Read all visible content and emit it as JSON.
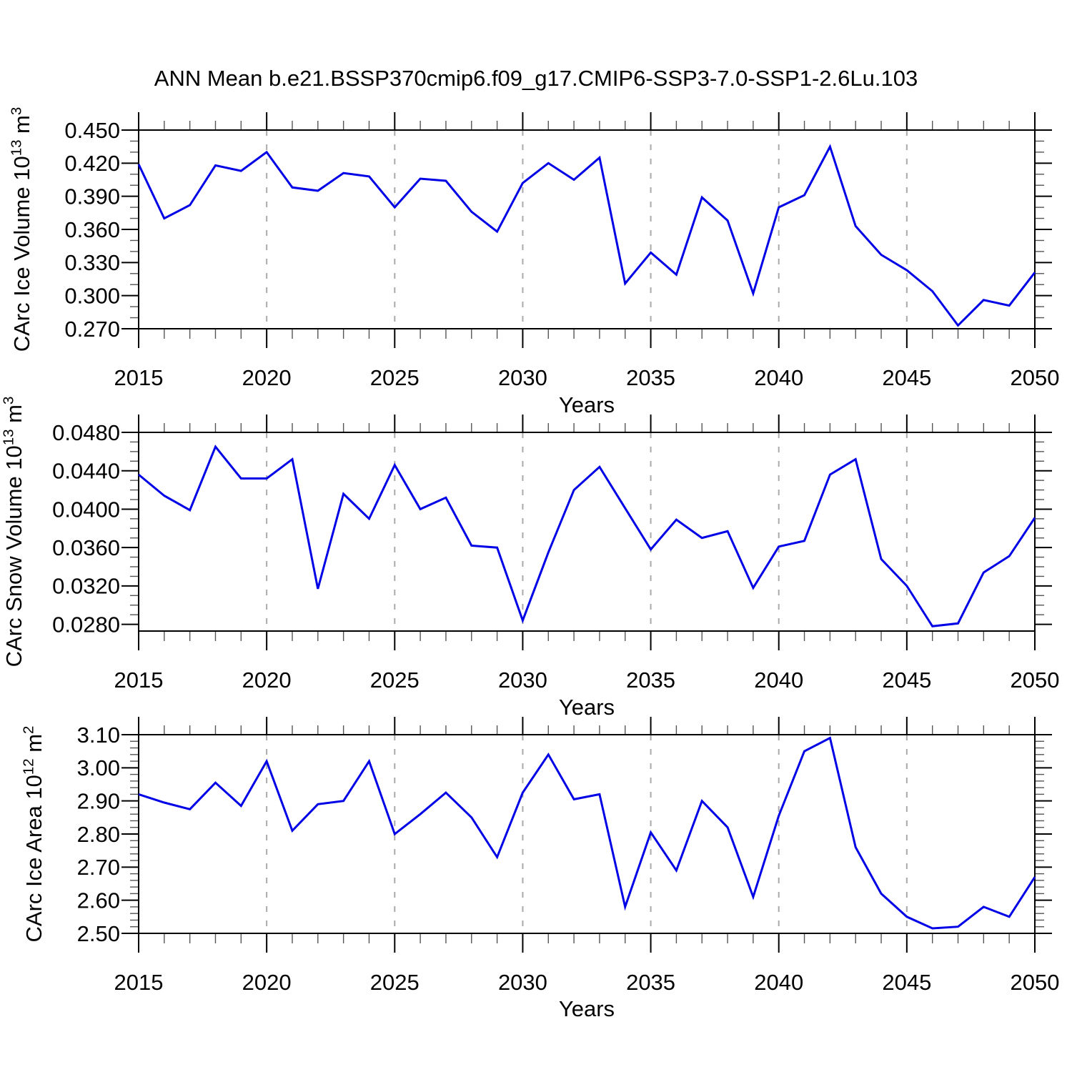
{
  "title": "ANN Mean b.e21.BSSP370cmip6.f09_g17.CMIP6-SSP3-7.0-SSP1-2.6Lu.103",
  "colors": {
    "line": "#0000e6",
    "grid": "#aaaaaa",
    "frame": "#000000",
    "major_tick": "#000000",
    "minor_tick": "#555555",
    "text": "#000000",
    "background": "#ffffff"
  },
  "years": [
    2015,
    2016,
    2017,
    2018,
    2019,
    2020,
    2021,
    2022,
    2023,
    2024,
    2025,
    2026,
    2027,
    2028,
    2029,
    2030,
    2031,
    2032,
    2033,
    2034,
    2035,
    2036,
    2037,
    2038,
    2039,
    2040,
    2041,
    2042,
    2043,
    2044,
    2045,
    2046,
    2047,
    2048,
    2049,
    2050
  ],
  "x_axis": {
    "label": "Years",
    "start": 2015,
    "end": 2050,
    "major_tick_years": [
      2015,
      2020,
      2025,
      2030,
      2035,
      2040,
      2045,
      2050
    ],
    "major_tick_labels": [
      "2015",
      "2020",
      "2025",
      "2030",
      "2035",
      "2040",
      "2045",
      "2050"
    ],
    "minor_tick_step_years": 1,
    "grid_years": [
      2020,
      2025,
      2030,
      2035,
      2040,
      2045
    ]
  },
  "chart_data": [
    {
      "type": "line",
      "id": "ice-volume",
      "ylabel": {
        "text": "CArc Ice Volume 10",
        "exp": "13",
        "unit": " m",
        "unit_exp": "3"
      },
      "xlabel": "Years",
      "ylim": [
        0.27,
        0.45
      ],
      "yticks": [
        0.45,
        0.42,
        0.39,
        0.36,
        0.33,
        0.3,
        0.27
      ],
      "ytick_labels": [
        "0.450",
        "0.420",
        "0.390",
        "0.360",
        "0.330",
        "0.300",
        "0.270"
      ],
      "y_minor_step": 0.01,
      "grid": "x-dashed",
      "legend": "none",
      "values": [
        0.419,
        0.37,
        0.382,
        0.418,
        0.413,
        0.43,
        0.398,
        0.395,
        0.411,
        0.408,
        0.38,
        0.406,
        0.404,
        0.376,
        0.358,
        0.402,
        0.42,
        0.405,
        0.425,
        0.311,
        0.339,
        0.319,
        0.389,
        0.368,
        0.302,
        0.38,
        0.391,
        0.435,
        0.363,
        0.337,
        0.323,
        0.304,
        0.273,
        0.296,
        0.291,
        0.321
      ]
    },
    {
      "type": "line",
      "id": "snow-volume",
      "ylabel": {
        "text": "CArc Snow Volume 10",
        "exp": "13",
        "unit": " m",
        "unit_exp": "3"
      },
      "xlabel": "Years",
      "ylim": [
        0.0273,
        0.048
      ],
      "yticks": [
        0.048,
        0.044,
        0.04,
        0.036,
        0.032,
        0.028
      ],
      "ytick_labels": [
        "0.0480",
        "0.0440",
        "0.0400",
        "0.0360",
        "0.0320",
        "0.0280"
      ],
      "y_minor_step": 0.001,
      "grid": "x-dashed",
      "legend": "none",
      "values": [
        0.0436,
        0.0414,
        0.0399,
        0.0465,
        0.0432,
        0.0432,
        0.0452,
        0.0317,
        0.0416,
        0.039,
        0.0446,
        0.04,
        0.0412,
        0.0362,
        0.036,
        0.0284,
        0.0355,
        0.042,
        0.0444,
        0.0401,
        0.0358,
        0.0389,
        0.037,
        0.0377,
        0.0318,
        0.0361,
        0.0367,
        0.0436,
        0.0452,
        0.0348,
        0.032,
        0.0278,
        0.0281,
        0.0334,
        0.0351,
        0.0391
      ]
    },
    {
      "type": "line",
      "id": "ice-area",
      "ylabel": {
        "text": "CArc Ice Area 10",
        "exp": "12",
        "unit": " m",
        "unit_exp": "2"
      },
      "xlabel": "Years",
      "ylim": [
        2.5,
        3.1
      ],
      "yticks": [
        3.1,
        3.0,
        2.9,
        2.8,
        2.7,
        2.6,
        2.5
      ],
      "ytick_labels": [
        "3.10",
        "3.00",
        "2.90",
        "2.80",
        "2.70",
        "2.60",
        "2.50"
      ],
      "y_minor_step": 0.02,
      "grid": "x-dashed",
      "legend": "none",
      "values": [
        2.92,
        2.895,
        2.875,
        2.955,
        2.885,
        3.02,
        2.81,
        2.89,
        2.9,
        3.02,
        2.8,
        2.86,
        2.925,
        2.85,
        2.73,
        2.925,
        3.04,
        2.905,
        2.92,
        2.58,
        2.805,
        2.69,
        2.9,
        2.82,
        2.61,
        2.855,
        3.05,
        3.09,
        2.76,
        2.62,
        2.55,
        2.515,
        2.52,
        2.58,
        2.55,
        2.67
      ]
    }
  ]
}
